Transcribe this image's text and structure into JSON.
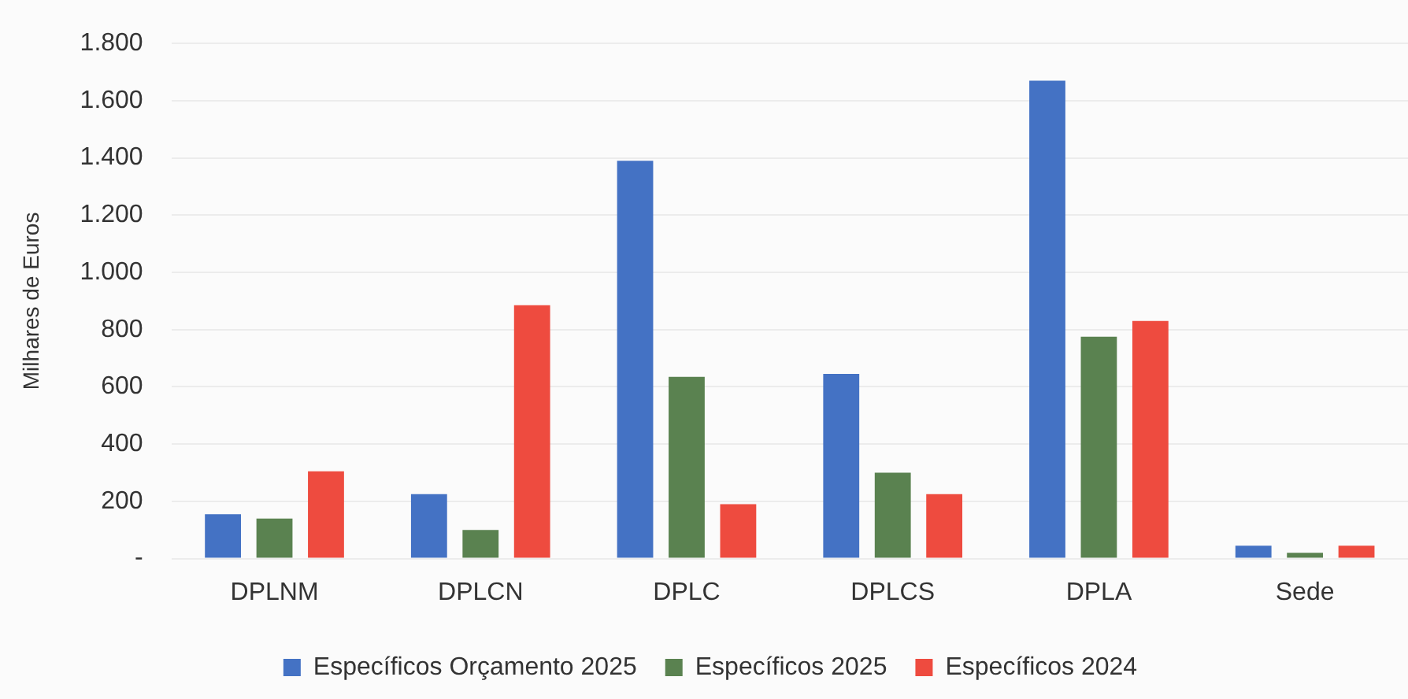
{
  "chart_data": {
    "type": "bar",
    "ylabel": "Milhares de Euros",
    "categories": [
      "DPLNM",
      "DPLCN",
      "DPLC",
      "DPLCS",
      "DPLA",
      "Sede"
    ],
    "series": [
      {
        "name": "Específicos Orçamento 2025",
        "color": "#4472c4",
        "values": [
          155,
          225,
          1390,
          645,
          1670,
          45
        ]
      },
      {
        "name": "Específicos 2025",
        "color": "#5a8250",
        "values": [
          140,
          100,
          635,
          300,
          775,
          20
        ]
      },
      {
        "name": "Específicos 2024",
        "color": "#ee4b3f",
        "values": [
          305,
          885,
          190,
          225,
          830,
          45
        ]
      }
    ],
    "ylim": [
      0,
      1800
    ],
    "yticks": [
      {
        "value": 0,
        "label": "-"
      },
      200,
      400,
      600,
      800,
      {
        "value": 1000,
        "label": "1.000"
      },
      {
        "value": 1200,
        "label": "1.200"
      },
      {
        "value": 1400,
        "label": "1.400"
      },
      {
        "value": 1600,
        "label": "1.600"
      },
      {
        "value": 1800,
        "label": "1.800"
      }
    ],
    "grid": "y",
    "legend": "bottom"
  }
}
